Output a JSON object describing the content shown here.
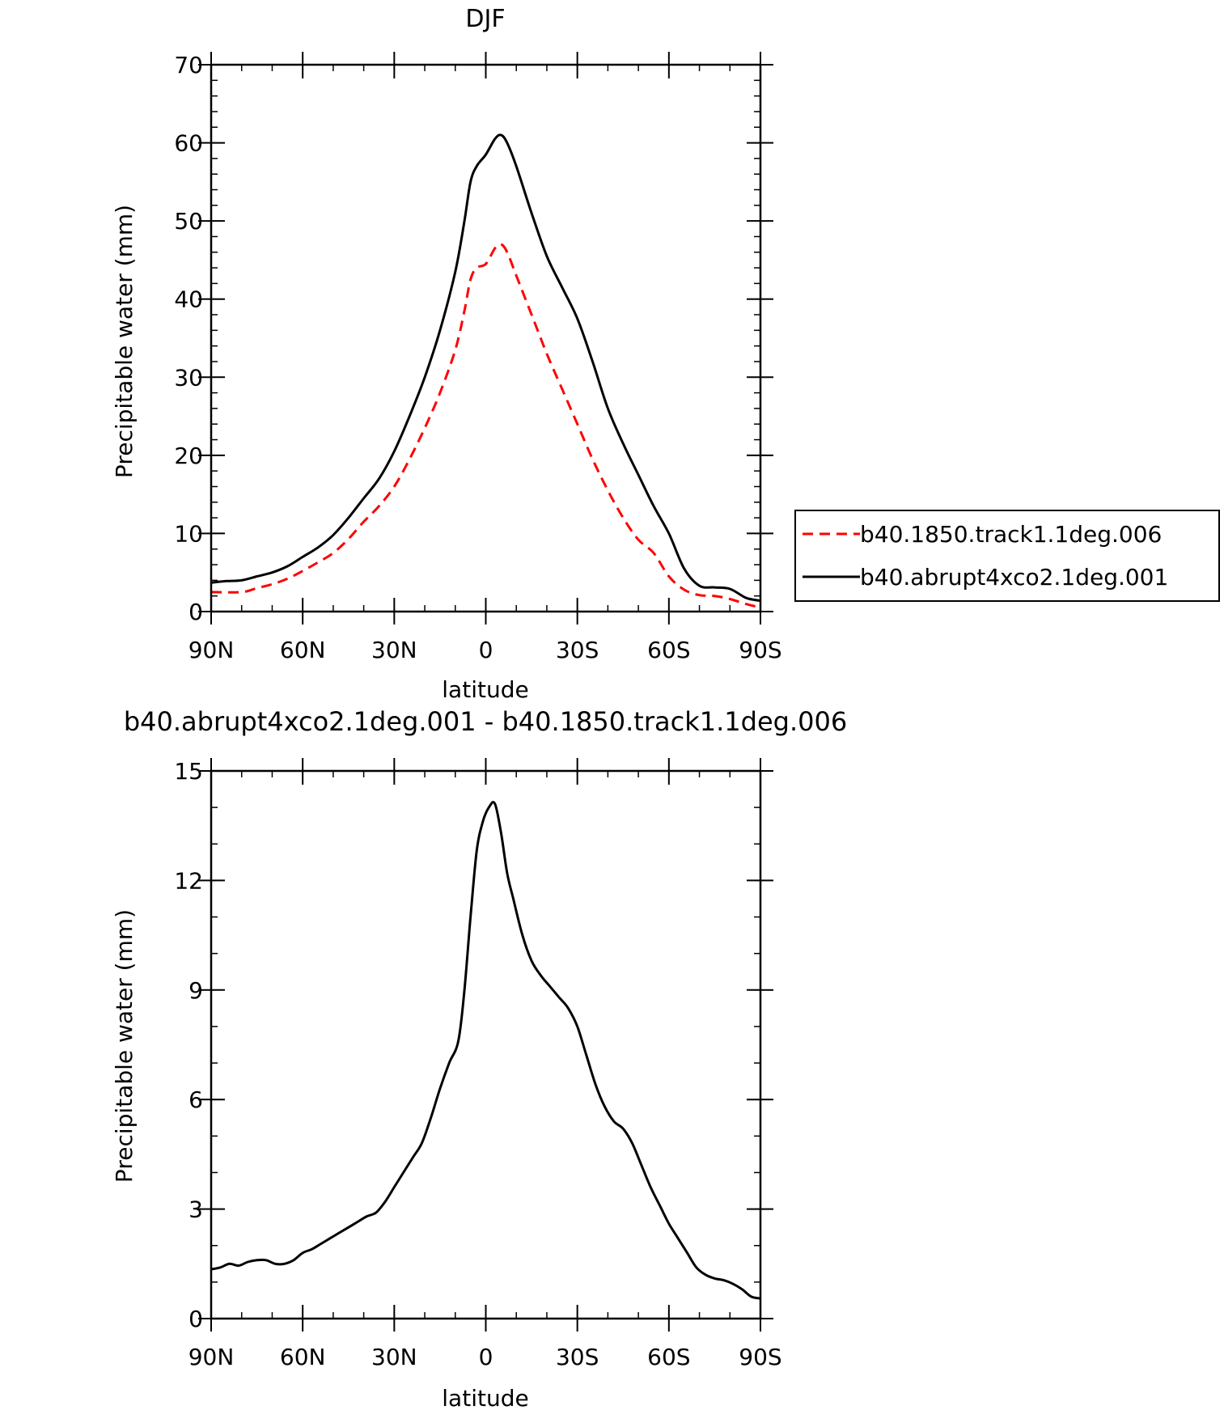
{
  "chart_data": [
    {
      "type": "line",
      "title": "DJF",
      "xlabel": "latitude",
      "ylabel": "Precipitable water (mm)",
      "xlim": [
        -90,
        90
      ],
      "ylim": [
        0,
        70
      ],
      "x_ticks": [
        -90,
        -60,
        -30,
        0,
        30,
        60,
        90
      ],
      "x_tick_labels": [
        "90N",
        "60N",
        "30N",
        "0",
        "30S",
        "60S",
        "90S"
      ],
      "y_ticks": [
        0,
        10,
        20,
        30,
        40,
        50,
        60,
        70
      ],
      "y_tick_labels": [
        "0",
        "10",
        "20",
        "30",
        "40",
        "50",
        "60",
        "70"
      ],
      "y_minor_step": 2,
      "x_minor_step": 10,
      "legend_position": "right",
      "series": [
        {
          "name": "b40.1850.track1.1deg.006",
          "color": "#ff0000",
          "dash": "dashed",
          "x": [
            -90,
            -80,
            -75,
            -70,
            -65,
            -60,
            -55,
            -50,
            -45,
            -40,
            -35,
            -30,
            -25,
            -20,
            -15,
            -10,
            -7,
            -5,
            -3,
            0,
            3,
            5,
            7,
            10,
            15,
            20,
            25,
            30,
            35,
            40,
            45,
            50,
            55,
            60,
            65,
            70,
            75,
            80,
            85,
            88,
            90
          ],
          "values": [
            2.5,
            2.5,
            3.0,
            3.5,
            4.2,
            5.2,
            6.3,
            7.5,
            9.3,
            11.5,
            13.5,
            16.0,
            19.5,
            23.5,
            28.0,
            33.5,
            38.5,
            42.5,
            44.0,
            44.5,
            46.5,
            47.0,
            46.0,
            43.0,
            38.0,
            33.0,
            28.5,
            24.0,
            19.5,
            15.5,
            12.0,
            9.2,
            7.5,
            4.5,
            2.8,
            2.1,
            2.0,
            1.6,
            1.0,
            0.7,
            0.7
          ]
        },
        {
          "name": "b40.abrupt4xco2.1deg.001",
          "color": "#000000",
          "dash": "solid",
          "x": [
            -90,
            -85,
            -80,
            -75,
            -70,
            -65,
            -60,
            -55,
            -50,
            -45,
            -40,
            -35,
            -30,
            -25,
            -20,
            -15,
            -10,
            -7,
            -5,
            -3,
            0,
            3,
            5,
            7,
            10,
            15,
            20,
            25,
            30,
            35,
            40,
            45,
            50,
            55,
            60,
            65,
            70,
            75,
            80,
            85,
            88,
            90
          ],
          "values": [
            3.7,
            3.9,
            4.0,
            4.5,
            5.0,
            5.8,
            7.0,
            8.2,
            9.8,
            12.0,
            14.5,
            17.0,
            20.5,
            25.0,
            30.0,
            36.0,
            43.5,
            50.0,
            55.0,
            57.0,
            58.5,
            60.5,
            61.0,
            60.0,
            57.0,
            51.0,
            45.5,
            41.5,
            37.5,
            32.0,
            26.0,
            21.5,
            17.5,
            13.5,
            10.0,
            5.5,
            3.3,
            3.1,
            2.9,
            1.8,
            1.5,
            1.4
          ]
        }
      ]
    },
    {
      "type": "line",
      "title": "b40.abrupt4xco2.1deg.001 - b40.1850.track1.1deg.006",
      "xlabel": "latitude",
      "ylabel": "Precipitable water (mm)",
      "xlim": [
        -90,
        90
      ],
      "ylim": [
        0,
        15
      ],
      "x_ticks": [
        -90,
        -60,
        -30,
        0,
        30,
        60,
        90
      ],
      "x_tick_labels": [
        "90N",
        "60N",
        "30N",
        "0",
        "30S",
        "60S",
        "90S"
      ],
      "y_ticks": [
        0,
        3,
        6,
        9,
        12,
        15
      ],
      "y_tick_labels": [
        "0",
        "3",
        "6",
        "9",
        "12",
        "15"
      ],
      "y_minor_step": 1,
      "x_minor_step": 10,
      "series": [
        {
          "color": "#000000",
          "dash": "solid",
          "x": [
            -90,
            -87,
            -84,
            -81,
            -78,
            -75,
            -72,
            -69,
            -66,
            -63,
            -60,
            -57,
            -54,
            -51,
            -48,
            -45,
            -42,
            -39,
            -36,
            -33,
            -30,
            -27,
            -24,
            -21,
            -18,
            -15,
            -12,
            -9,
            -7,
            -5,
            -3,
            -1,
            1,
            3,
            5,
            7,
            9,
            12,
            15,
            18,
            21,
            24,
            27,
            30,
            33,
            36,
            39,
            42,
            45,
            48,
            51,
            54,
            57,
            60,
            63,
            66,
            69,
            72,
            75,
            78,
            81,
            84,
            87,
            90
          ],
          "values": [
            1.35,
            1.4,
            1.5,
            1.45,
            1.55,
            1.6,
            1.6,
            1.5,
            1.5,
            1.6,
            1.8,
            1.9,
            2.05,
            2.2,
            2.35,
            2.5,
            2.65,
            2.8,
            2.9,
            3.2,
            3.6,
            4.0,
            4.4,
            4.8,
            5.5,
            6.3,
            7.0,
            7.6,
            9.0,
            11.0,
            12.8,
            13.6,
            14.0,
            14.1,
            13.3,
            12.2,
            11.5,
            10.5,
            9.8,
            9.4,
            9.1,
            8.8,
            8.5,
            8.0,
            7.2,
            6.4,
            5.8,
            5.4,
            5.2,
            4.8,
            4.2,
            3.6,
            3.1,
            2.6,
            2.2,
            1.8,
            1.4,
            1.2,
            1.1,
            1.05,
            0.95,
            0.8,
            0.6,
            0.55
          ]
        }
      ]
    }
  ]
}
